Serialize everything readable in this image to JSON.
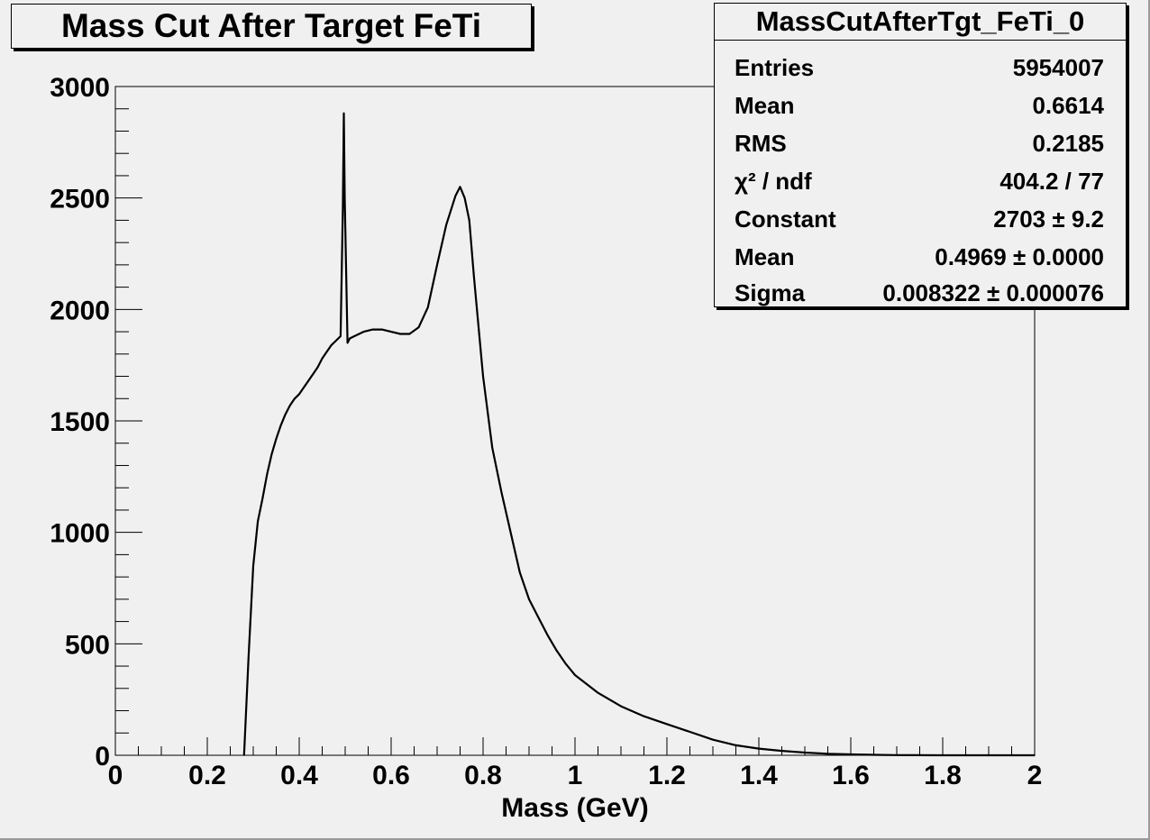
{
  "chart_data": {
    "type": "line",
    "title": "Mass Cut After Target FeTi",
    "xlabel": "Mass (GeV)",
    "ylabel": "",
    "xlim": [
      0,
      2
    ],
    "ylim": [
      0,
      3000
    ],
    "x_ticks": [
      "0",
      "0.2",
      "0.4",
      "0.6",
      "0.8",
      "1",
      "1.2",
      "1.4",
      "1.6",
      "1.8",
      "2"
    ],
    "y_ticks": [
      "0",
      "500",
      "1000",
      "1500",
      "2000",
      "2500",
      "3000"
    ],
    "grid": false,
    "series": [
      {
        "x": [
          0.28,
          0.29,
          0.3,
          0.31,
          0.32,
          0.33,
          0.34,
          0.35,
          0.36,
          0.37,
          0.38,
          0.39,
          0.4,
          0.41,
          0.42,
          0.43,
          0.44,
          0.45,
          0.46,
          0.47,
          0.48,
          0.49,
          0.495,
          0.497,
          0.499,
          0.505,
          0.51,
          0.52,
          0.54,
          0.56,
          0.58,
          0.6,
          0.62,
          0.64,
          0.66,
          0.68,
          0.7,
          0.72,
          0.74,
          0.75,
          0.76,
          0.77,
          0.78,
          0.8,
          0.82,
          0.84,
          0.86,
          0.88,
          0.9,
          0.92,
          0.94,
          0.96,
          0.98,
          1.0,
          1.05,
          1.1,
          1.15,
          1.2,
          1.25,
          1.3,
          1.35,
          1.4,
          1.45,
          1.5,
          1.55,
          1.6,
          1.65,
          1.7,
          1.8,
          1.9,
          2.0
        ],
        "y": [
          0,
          450,
          850,
          1050,
          1150,
          1260,
          1350,
          1420,
          1480,
          1530,
          1570,
          1600,
          1620,
          1650,
          1680,
          1710,
          1740,
          1780,
          1810,
          1840,
          1860,
          1880,
          2450,
          2880,
          2500,
          1850,
          1870,
          1880,
          1900,
          1910,
          1910,
          1900,
          1890,
          1890,
          1920,
          2010,
          2200,
          2380,
          2510,
          2550,
          2500,
          2400,
          2150,
          1700,
          1380,
          1180,
          1000,
          820,
          700,
          620,
          540,
          470,
          410,
          360,
          280,
          220,
          175,
          140,
          105,
          70,
          45,
          30,
          20,
          12,
          7,
          4,
          2,
          1,
          0,
          0,
          0
        ]
      }
    ]
  },
  "stats": {
    "title": "MassCutAfterTgt_FeTi_0",
    "rows": [
      {
        "key": "Entries",
        "value": "5954007"
      },
      {
        "key": "Mean",
        "value": "0.6614"
      },
      {
        "key": "RMS",
        "value": "0.2185"
      },
      {
        "key": "χ² / ndf",
        "value": "404.2 / 77"
      },
      {
        "key": "Constant",
        "value": "2703 ± 9.2"
      },
      {
        "key": "Mean",
        "value": "0.4969 ± 0.0000"
      },
      {
        "key": "Sigma",
        "value": "0.008322 ± 0.000076"
      }
    ]
  }
}
